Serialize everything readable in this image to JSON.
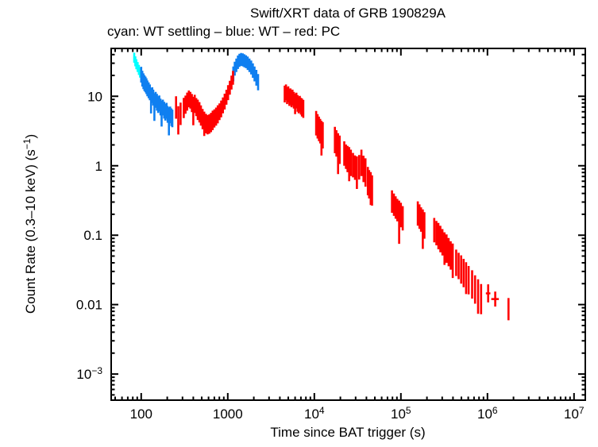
{
  "title": "Swift/XRT data of GRB 190829A",
  "subtitle": "cyan: WT settling – blue: WT – red: PC",
  "chart_data": {
    "type": "scatter",
    "title": "Swift/XRT data of GRB 190829A",
    "subtitle": "cyan: WT settling – blue: WT – red: PC",
    "xlabel": "Time since BAT trigger (s)",
    "ylabel": "Count Rate (0.3–10 keV) (s^-1)",
    "ylabel_parts": [
      [
        "Count Rate (0.3–10 keV) (s"
      ],
      [
        "−1",
        "sup"
      ],
      [
        ")"
      ]
    ],
    "xscale": "log",
    "yscale": "log",
    "xlim": [
      45,
      13500000
    ],
    "ylim": [
      0.00042,
      49
    ],
    "grid": false,
    "legend_position": "subtitle-line",
    "legend": [
      {
        "label": "WT settling",
        "color": "#00ffff"
      },
      {
        "label": "WT",
        "color": "#0f7ff0"
      },
      {
        "label": "PC",
        "color": "#ff0000"
      }
    ],
    "xticks": [
      {
        "v": 100,
        "parts": [
          [
            "100"
          ]
        ]
      },
      {
        "v": 1000,
        "parts": [
          [
            "1000"
          ]
        ]
      },
      {
        "v": 10000,
        "parts": [
          [
            "10"
          ],
          [
            "4",
            "sup"
          ]
        ]
      },
      {
        "v": 100000,
        "parts": [
          [
            "10"
          ],
          [
            "5",
            "sup"
          ]
        ]
      },
      {
        "v": 1000000,
        "parts": [
          [
            "10"
          ],
          [
            "6",
            "sup"
          ]
        ]
      },
      {
        "v": 10000000,
        "parts": [
          [
            "10"
          ],
          [
            "7",
            "sup"
          ]
        ]
      }
    ],
    "yticks": [
      {
        "v": 10,
        "parts": [
          [
            "10"
          ]
        ]
      },
      {
        "v": 1,
        "parts": [
          [
            "1"
          ]
        ]
      },
      {
        "v": 0.1,
        "parts": [
          [
            "0.1"
          ]
        ]
      },
      {
        "v": 0.01,
        "parts": [
          [
            "0.01"
          ]
        ]
      },
      {
        "v": 0.001,
        "parts": [
          [
            "10"
          ],
          [
            "−3",
            "sup"
          ]
        ]
      }
    ],
    "point_format": "[t_s, rate, err_factor_hi, bin_halfwidth_frac, err_factor_lo_optional]",
    "series": [
      {
        "name": "WT settling",
        "color": "#00ffff",
        "points": [
          [
            83,
            36,
            1.18,
            0.018
          ],
          [
            85.5,
            32,
            1.18,
            0.018
          ],
          [
            88,
            29,
            1.18,
            0.018
          ],
          [
            91,
            26.5,
            1.18,
            0.018
          ],
          [
            94,
            24,
            1.18,
            0.018
          ],
          [
            97,
            22,
            1.18,
            0.018
          ]
        ]
      },
      {
        "name": "WT",
        "color": "#0f7ff0",
        "points": [
          [
            100,
            20.5,
            1.3,
            0.015
          ],
          [
            103,
            18,
            1.3,
            0.015
          ],
          [
            106,
            16.5,
            1.3,
            0.015
          ],
          [
            109,
            15.5,
            1.3,
            0.015
          ],
          [
            112,
            14.8,
            1.3,
            0.015
          ],
          [
            115,
            14,
            1.3,
            0.015
          ],
          [
            118,
            13,
            1.3,
            0.015
          ],
          [
            122,
            12.2,
            1.3,
            0.015
          ],
          [
            126,
            11.4,
            1.3,
            0.015
          ],
          [
            130,
            10.2,
            1.3,
            0.015,
            1.8
          ],
          [
            134,
            10.4,
            1.3,
            0.015
          ],
          [
            138,
            9.6,
            1.3,
            0.015
          ],
          [
            142,
            8.4,
            1.32,
            0.015,
            1.9
          ],
          [
            147,
            8.9,
            1.3,
            0.015
          ],
          [
            152,
            8.2,
            1.32,
            0.015
          ],
          [
            157,
            7.6,
            1.32,
            0.015
          ],
          [
            162,
            7.9,
            1.3,
            0.015
          ],
          [
            167,
            7,
            1.32,
            0.015
          ],
          [
            172,
            6.6,
            1.32,
            0.015,
            1.8
          ],
          [
            178,
            6.9,
            1.3,
            0.015
          ],
          [
            184,
            6.3,
            1.32,
            0.015
          ],
          [
            190,
            5.9,
            1.32,
            0.015
          ],
          [
            196,
            6.2,
            1.3,
            0.015
          ],
          [
            202,
            5.5,
            1.32,
            0.015
          ],
          [
            209,
            5.2,
            1.34,
            0.015,
            1.9
          ],
          [
            216,
            5.4,
            1.32,
            0.015
          ],
          [
            223,
            5,
            1.34,
            0.015
          ],
          [
            229,
            4.8,
            1.34,
            0.015
          ],
          [
            1160,
            21,
            1.28,
            0.02
          ],
          [
            1205,
            25,
            1.26,
            0.02
          ],
          [
            1255,
            28,
            1.25,
            0.02
          ],
          [
            1310,
            31,
            1.25,
            0.02
          ],
          [
            1365,
            33,
            1.24,
            0.02
          ],
          [
            1425,
            34,
            1.24,
            0.02
          ],
          [
            1490,
            33.5,
            1.24,
            0.02
          ],
          [
            1555,
            32.5,
            1.24,
            0.02
          ],
          [
            1625,
            31.5,
            1.24,
            0.02
          ],
          [
            1700,
            30,
            1.25,
            0.02
          ],
          [
            1780,
            28,
            1.25,
            0.02
          ],
          [
            1865,
            26,
            1.26,
            0.02
          ],
          [
            1950,
            23.5,
            1.27,
            0.02
          ],
          [
            2040,
            21,
            1.28,
            0.02
          ],
          [
            2140,
            18.5,
            1.3,
            0.02
          ],
          [
            2240,
            16,
            1.31,
            0.02
          ]
        ]
      },
      {
        "name": "PC",
        "color": "#ff0000",
        "points": [
          [
            253,
            6.9,
            1.45,
            0.025
          ],
          [
            268,
            4.8,
            1.5,
            0.025,
            1.7
          ],
          [
            285,
            5.6,
            1.45,
            0.025
          ],
          [
            310,
            6.8,
            1.4,
            0.02
          ],
          [
            325,
            7.6,
            1.35,
            0.02
          ],
          [
            340,
            8.4,
            1.35,
            0.02
          ],
          [
            355,
            9.2,
            1.32,
            0.02
          ],
          [
            370,
            8.8,
            1.32,
            0.02
          ],
          [
            385,
            8,
            1.35,
            0.02
          ],
          [
            400,
            7.3,
            1.35,
            0.02,
            1.9
          ],
          [
            415,
            7.8,
            1.35,
            0.02
          ],
          [
            432,
            7,
            1.35,
            0.02
          ],
          [
            450,
            6.4,
            1.4,
            0.02
          ],
          [
            470,
            5.9,
            1.4,
            0.02
          ],
          [
            490,
            5.3,
            1.4,
            0.02
          ],
          [
            512,
            4.7,
            1.4,
            0.02
          ],
          [
            535,
            4.3,
            1.4,
            0.02,
            1.6
          ],
          [
            560,
            4.05,
            1.38,
            0.02
          ],
          [
            585,
            3.9,
            1.38,
            0.02
          ],
          [
            612,
            4,
            1.38,
            0.02
          ],
          [
            640,
            4.2,
            1.38,
            0.02
          ],
          [
            670,
            4.5,
            1.38,
            0.02
          ],
          [
            700,
            4.8,
            1.35,
            0.02
          ],
          [
            733,
            5.1,
            1.35,
            0.02
          ],
          [
            767,
            5.5,
            1.35,
            0.02
          ],
          [
            803,
            6,
            1.32,
            0.02
          ],
          [
            840,
            6.6,
            1.32,
            0.02
          ],
          [
            880,
            7.4,
            1.3,
            0.02
          ],
          [
            921,
            8.4,
            1.3,
            0.02
          ],
          [
            964,
            9.7,
            1.28,
            0.02
          ],
          [
            1009,
            11.3,
            1.28,
            0.02
          ],
          [
            1056,
            13.3,
            1.26,
            0.02
          ],
          [
            1105,
            15.8,
            1.26,
            0.02
          ],
          [
            1150,
            18.5,
            1.26,
            0.02
          ],
          [
            4550,
            10.8,
            1.32,
            0.012
          ],
          [
            4700,
            11.4,
            1.3,
            0.012
          ],
          [
            4850,
            10.2,
            1.32,
            0.012
          ],
          [
            5000,
            10.7,
            1.3,
            0.012
          ],
          [
            5150,
            9.6,
            1.32,
            0.012
          ],
          [
            5300,
            10,
            1.3,
            0.012
          ],
          [
            5450,
            9.2,
            1.32,
            0.012
          ],
          [
            5600,
            9.6,
            1.3,
            0.012
          ],
          [
            5800,
            8.8,
            1.32,
            0.012
          ],
          [
            6000,
            8.3,
            1.32,
            0.012,
            1.5
          ],
          [
            6200,
            8.7,
            1.3,
            0.012
          ],
          [
            6400,
            7.9,
            1.32,
            0.012
          ],
          [
            6600,
            7.5,
            1.32,
            0.012
          ],
          [
            6800,
            7.8,
            1.3,
            0.012
          ],
          [
            7000,
            7.2,
            1.32,
            0.012
          ],
          [
            7200,
            6.9,
            1.35,
            0.012
          ],
          [
            7450,
            6.6,
            1.35,
            0.012
          ],
          [
            10500,
            4.1,
            1.5,
            0.015
          ],
          [
            10900,
            3.7,
            1.5,
            0.015
          ],
          [
            11300,
            3.4,
            1.5,
            0.015
          ],
          [
            11700,
            3.15,
            1.5,
            0.015
          ],
          [
            12100,
            2.95,
            1.5,
            0.015,
            2.1
          ],
          [
            12500,
            2.75,
            1.55,
            0.015
          ],
          [
            17300,
            2.35,
            1.55,
            0.015
          ],
          [
            18000,
            2.1,
            1.55,
            0.015
          ],
          [
            18800,
            1.9,
            1.55,
            0.015,
            2.5
          ],
          [
            19600,
            1.7,
            1.6,
            0.015
          ],
          [
            22200,
            1.5,
            1.5,
            0.015
          ],
          [
            23200,
            1.35,
            1.5,
            0.015
          ],
          [
            24200,
            1.25,
            1.55,
            0.015
          ],
          [
            25300,
            1.2,
            1.55,
            0.015,
            2
          ],
          [
            26400,
            1.1,
            1.55,
            0.015
          ],
          [
            28000,
            1.02,
            1.5,
            0.015
          ],
          [
            29500,
            0.94,
            1.5,
            0.015
          ],
          [
            31000,
            0.88,
            1.55,
            0.015,
            1.9
          ],
          [
            33000,
            0.95,
            1.5,
            0.015
          ],
          [
            35000,
            1.1,
            1.55,
            0.015
          ],
          [
            37000,
            0.9,
            1.55,
            0.015
          ],
          [
            39000,
            0.8,
            1.6,
            0.015
          ],
          [
            41500,
            0.6,
            1.6,
            0.015
          ],
          [
            43000,
            0.54,
            1.6,
            0.015
          ],
          [
            44800,
            0.49,
            1.65,
            0.015,
            1.8
          ],
          [
            46500,
            0.44,
            1.65,
            0.015
          ],
          [
            79000,
            0.305,
            1.45,
            0.012
          ],
          [
            83000,
            0.275,
            1.45,
            0.012
          ],
          [
            87000,
            0.25,
            1.45,
            0.012
          ],
          [
            91000,
            0.23,
            1.45,
            0.012
          ],
          [
            95500,
            0.21,
            1.5,
            0.012,
            2.8
          ],
          [
            100000,
            0.195,
            1.5,
            0.012
          ],
          [
            105000,
            0.175,
            1.5,
            0.012
          ],
          [
            157000,
            0.205,
            1.5,
            0.012
          ],
          [
            164000,
            0.185,
            1.5,
            0.012
          ],
          [
            171000,
            0.168,
            1.5,
            0.012
          ],
          [
            179000,
            0.152,
            1.55,
            0.012,
            2.4
          ],
          [
            187000,
            0.138,
            1.55,
            0.012
          ],
          [
            243000,
            0.118,
            1.5,
            0.012
          ],
          [
            257000,
            0.107,
            1.5,
            0.012
          ],
          [
            271000,
            0.097,
            1.55,
            0.012
          ],
          [
            286000,
            0.088,
            1.55,
            0.012
          ],
          [
            302000,
            0.079,
            1.55,
            0.012
          ],
          [
            319000,
            0.071,
            1.55,
            0.012,
            1.9
          ],
          [
            337000,
            0.064,
            1.6,
            0.012
          ],
          [
            356000,
            0.057,
            1.6,
            0.012
          ],
          [
            376000,
            0.051,
            1.6,
            0.012
          ],
          [
            397000,
            0.046,
            1.65,
            0.012,
            1.9
          ],
          [
            435000,
            0.04,
            1.55,
            0.012
          ],
          [
            465000,
            0.036,
            1.55,
            0.012
          ],
          [
            497000,
            0.032,
            1.6,
            0.012
          ],
          [
            531000,
            0.0285,
            1.6,
            0.012
          ],
          [
            567000,
            0.0255,
            1.6,
            0.012,
            1.8
          ],
          [
            606000,
            0.0225,
            1.6,
            0.012
          ],
          [
            665000,
            0.0195,
            1.6,
            0.015
          ],
          [
            720000,
            0.0165,
            1.6,
            0.015
          ],
          [
            780000,
            0.014,
            1.65,
            0.015,
            1.9
          ],
          [
            845000,
            0.012,
            1.65,
            0.015
          ],
          [
            1020000,
            0.0145,
            1.35,
            0.06
          ],
          [
            1230000,
            0.012,
            1.28,
            0.1
          ],
          [
            1750000,
            0.0092,
            1.35,
            0.02,
            1.55
          ]
        ]
      }
    ]
  }
}
